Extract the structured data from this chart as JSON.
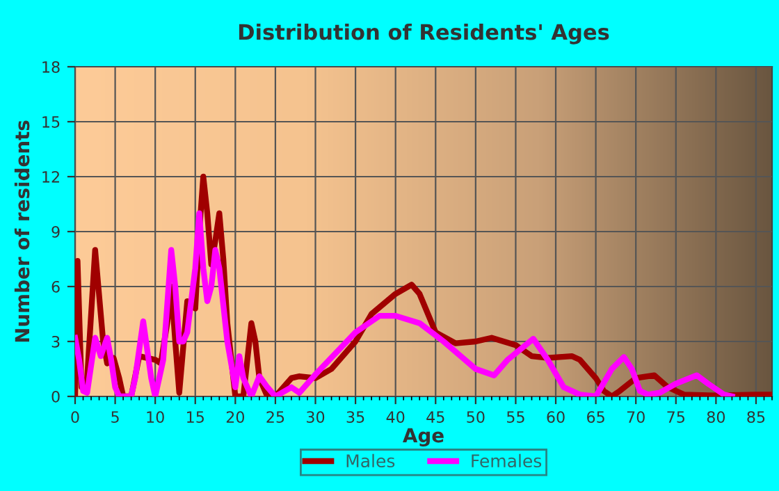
{
  "chart_data": {
    "type": "line",
    "title": "Distribution of Residents' Ages",
    "xlabel": "Age",
    "ylabel": "Number of residents",
    "xlim": [
      0,
      87
    ],
    "xticks": [
      0,
      5,
      10,
      15,
      20,
      25,
      30,
      35,
      40,
      45,
      50,
      55,
      60,
      65,
      70,
      75,
      80,
      85
    ],
    "ylim": [
      0,
      18
    ],
    "yticks": [
      0,
      3,
      6,
      9,
      12,
      15,
      18
    ],
    "grid": true,
    "legend": "bottom",
    "marker": "none",
    "line_style": "solid",
    "series": [
      {
        "name": "Males",
        "color": "#a00000",
        "x": [
          0,
          0.3,
          0.8,
          1.5,
          2.5,
          3.5,
          4,
          4.8,
          5.5,
          6,
          7,
          8,
          10,
          10.7,
          11.5,
          12,
          12.5,
          13,
          14,
          15,
          15.5,
          16,
          16.5,
          17,
          17.5,
          18,
          18.5,
          19,
          20,
          21,
          22,
          22.5,
          23,
          24,
          25,
          27,
          28,
          30,
          32,
          35,
          37,
          40,
          42,
          43,
          45,
          47.5,
          50,
          52,
          55,
          57,
          59,
          62,
          63,
          65,
          66,
          67,
          68,
          70,
          72.3,
          74,
          76,
          80,
          85,
          87
        ],
        "values": [
          0,
          7.4,
          0.5,
          1,
          8,
          3,
          1.8,
          2.1,
          1,
          0,
          0,
          2.2,
          2,
          1.8,
          4,
          6,
          3,
          0.2,
          5.2,
          4.8,
          9,
          12,
          10,
          7.2,
          8.5,
          10,
          7.5,
          4,
          0,
          0,
          4,
          3,
          1,
          0,
          0,
          1,
          1.1,
          1,
          1.5,
          3,
          4.5,
          5.6,
          6.1,
          5.6,
          3.5,
          2.9,
          3,
          3.2,
          2.8,
          2.2,
          2.1,
          2.2,
          2,
          1,
          0.3,
          0,
          0.3,
          1,
          1.15,
          0.5,
          0.1,
          0.05,
          0.1,
          0.1
        ]
      },
      {
        "name": "Females",
        "color": "#ff00ff",
        "x": [
          0,
          0.5,
          1,
          1.5,
          2.5,
          3.2,
          4,
          4.5,
          5,
          5.5,
          7,
          7.5,
          8.5,
          9.5,
          10,
          11,
          12,
          12.5,
          13,
          13.5,
          14,
          15,
          15.5,
          16,
          16.5,
          17,
          17.5,
          18,
          19,
          20,
          20.5,
          21,
          22,
          23,
          24,
          25,
          27,
          28,
          30,
          35,
          38,
          40,
          43,
          46,
          50,
          52.3,
          54,
          57.2,
          59,
          61,
          63,
          65,
          67,
          68.5,
          69.5,
          70.5,
          71.5,
          73,
          75,
          77.6,
          79,
          81,
          82
        ],
        "values": [
          3.2,
          2,
          0.3,
          0.2,
          3.2,
          2.2,
          3.2,
          2,
          0.5,
          0,
          0,
          1,
          4.1,
          1,
          0,
          2,
          8,
          6,
          3,
          3,
          3.5,
          7,
          10,
          7,
          5.2,
          6,
          8,
          7,
          3,
          0.5,
          2.2,
          1,
          0,
          1.1,
          0.5,
          0,
          0.5,
          0.2,
          1.2,
          3.5,
          4.4,
          4.4,
          4,
          3,
          1.5,
          1.15,
          2,
          3.15,
          2,
          0.5,
          0.1,
          0,
          1.5,
          2.15,
          1.5,
          0.3,
          0.1,
          0.2,
          0.7,
          1.15,
          0.7,
          0.1,
          0
        ]
      }
    ]
  }
}
